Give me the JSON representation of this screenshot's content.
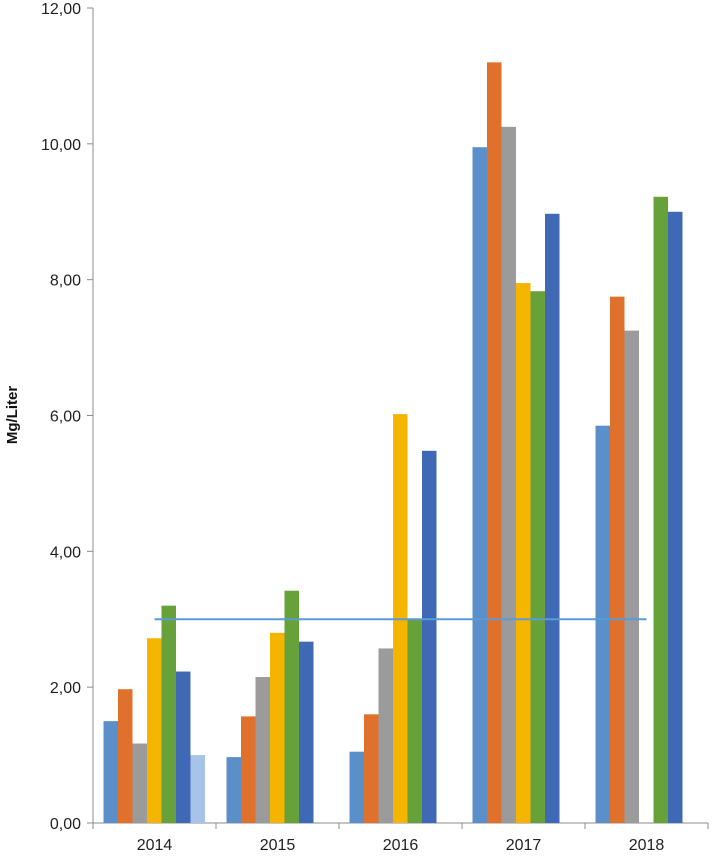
{
  "chart_data": {
    "type": "bar",
    "title": "",
    "xlabel": "",
    "ylabel": "Mg/Liter",
    "ylim": [
      0,
      12
    ],
    "yticks": [
      "0,00",
      "2,00",
      "4,00",
      "6,00",
      "8,00",
      "10,00",
      "12,00"
    ],
    "categories": [
      "2014",
      "2015",
      "2016",
      "2017",
      "2018"
    ],
    "grid": false,
    "legend": "none",
    "series": [
      {
        "color": "#5b8fc9",
        "values": [
          1.5,
          0.97,
          1.05,
          9.95,
          5.85
        ]
      },
      {
        "color": "#e0712c",
        "values": [
          1.97,
          1.57,
          1.6,
          11.2,
          7.75
        ]
      },
      {
        "color": "#9b9b9b",
        "values": [
          1.17,
          2.15,
          2.57,
          10.25,
          7.25
        ]
      },
      {
        "color": "#f5b400",
        "values": [
          2.72,
          2.8,
          6.02,
          7.95,
          null
        ]
      },
      {
        "color": "#66a13a",
        "values": [
          3.2,
          3.42,
          3.0,
          7.83,
          9.22
        ]
      },
      {
        "color": "#3f69b4",
        "values": [
          2.23,
          2.67,
          5.48,
          8.97,
          9.0
        ]
      },
      {
        "color": "#a7c3e8",
        "values": [
          1.0,
          null,
          null,
          null,
          null
        ]
      }
    ],
    "reference_line": {
      "value": 3.0,
      "color": "#5b9bd5",
      "from_category": "2014",
      "to_category": "2018"
    }
  }
}
